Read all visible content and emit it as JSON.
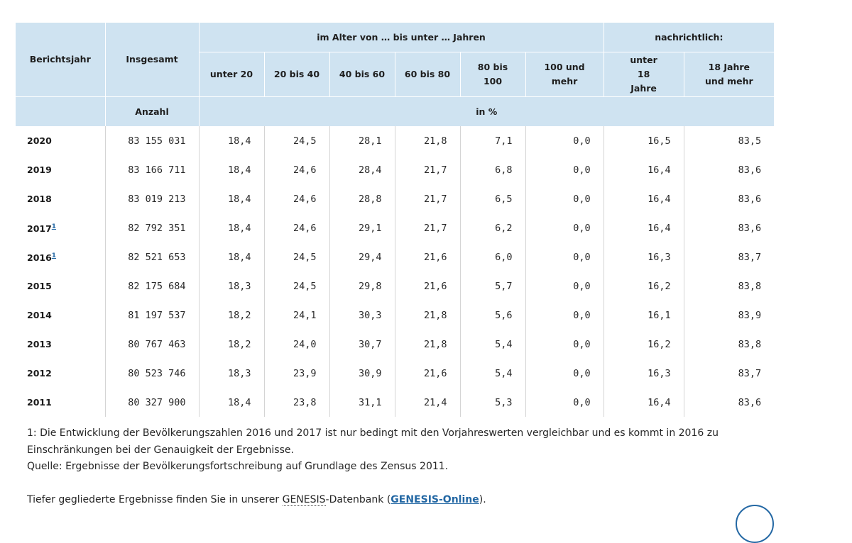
{
  "table": {
    "header": {
      "year": "Berichtsjahr",
      "total": "Insgesamt",
      "age_group": "im Alter von … bis unter … Jahren",
      "memo": "nachrichtlich:",
      "age_cols": [
        "unter 20",
        "20 bis 40",
        "40 bis 60",
        "60 bis 80",
        "80 bis 100",
        "100 und mehr"
      ],
      "memo_cols": [
        "unter 18 Jahre",
        "18 Jahre und mehr"
      ],
      "unit_count": "Anzahl",
      "unit_pct": "in %"
    },
    "rows": [
      {
        "year": "2020",
        "note": "",
        "total": "83 155 031",
        "v": [
          "18,4",
          "24,5",
          "28,1",
          "21,8",
          "7,1",
          "0,0",
          "16,5",
          "83,5"
        ]
      },
      {
        "year": "2019",
        "note": "",
        "total": "83 166 711",
        "v": [
          "18,4",
          "24,6",
          "28,4",
          "21,7",
          "6,8",
          "0,0",
          "16,4",
          "83,6"
        ]
      },
      {
        "year": "2018",
        "note": "",
        "total": "83 019 213",
        "v": [
          "18,4",
          "24,6",
          "28,8",
          "21,7",
          "6,5",
          "0,0",
          "16,4",
          "83,6"
        ]
      },
      {
        "year": "2017",
        "note": "1",
        "total": "82 792 351",
        "v": [
          "18,4",
          "24,6",
          "29,1",
          "21,7",
          "6,2",
          "0,0",
          "16,4",
          "83,6"
        ]
      },
      {
        "year": "2016",
        "note": "1",
        "total": "82 521 653",
        "v": [
          "18,4",
          "24,5",
          "29,4",
          "21,6",
          "6,0",
          "0,0",
          "16,3",
          "83,7"
        ]
      },
      {
        "year": "2015",
        "note": "",
        "total": "82 175 684",
        "v": [
          "18,3",
          "24,5",
          "29,8",
          "21,6",
          "5,7",
          "0,0",
          "16,2",
          "83,8"
        ]
      },
      {
        "year": "2014",
        "note": "",
        "total": "81 197 537",
        "v": [
          "18,2",
          "24,1",
          "30,3",
          "21,8",
          "5,6",
          "0,0",
          "16,1",
          "83,9"
        ]
      },
      {
        "year": "2013",
        "note": "",
        "total": "80 767 463",
        "v": [
          "18,2",
          "24,0",
          "30,7",
          "21,8",
          "5,4",
          "0,0",
          "16,2",
          "83,8"
        ]
      },
      {
        "year": "2012",
        "note": "",
        "total": "80 523 746",
        "v": [
          "18,3",
          "23,9",
          "30,9",
          "21,6",
          "5,4",
          "0,0",
          "16,3",
          "83,7"
        ]
      },
      {
        "year": "2011",
        "note": "",
        "total": "80 327 900",
        "v": [
          "18,4",
          "23,8",
          "31,1",
          "21,4",
          "5,3",
          "0,0",
          "16,4",
          "83,6"
        ]
      }
    ]
  },
  "footnotes": {
    "note1": "1: Die Entwicklung der Bevölkerungszahlen 2016 und 2017 ist nur bedingt mit den Vorjahreswerten vergleichbar und es kommt in 2016 zu Einschränkungen bei der Genauigkeit der Ergebnisse.",
    "source": "Quelle: Ergebnisse der Bevölkerungsfortschreibung auf Grundlage des Zensus 2011.",
    "more_prefix": "Tiefer gegliederte Ergebnisse finden Sie in unserer ",
    "more_abbr": "GENESIS",
    "more_mid": "-Datenbank (",
    "more_link": "GENESIS-Online",
    "more_suffix": ")."
  },
  "colors": {
    "header_bg": "#cfe3f1",
    "link": "#2468a4"
  }
}
